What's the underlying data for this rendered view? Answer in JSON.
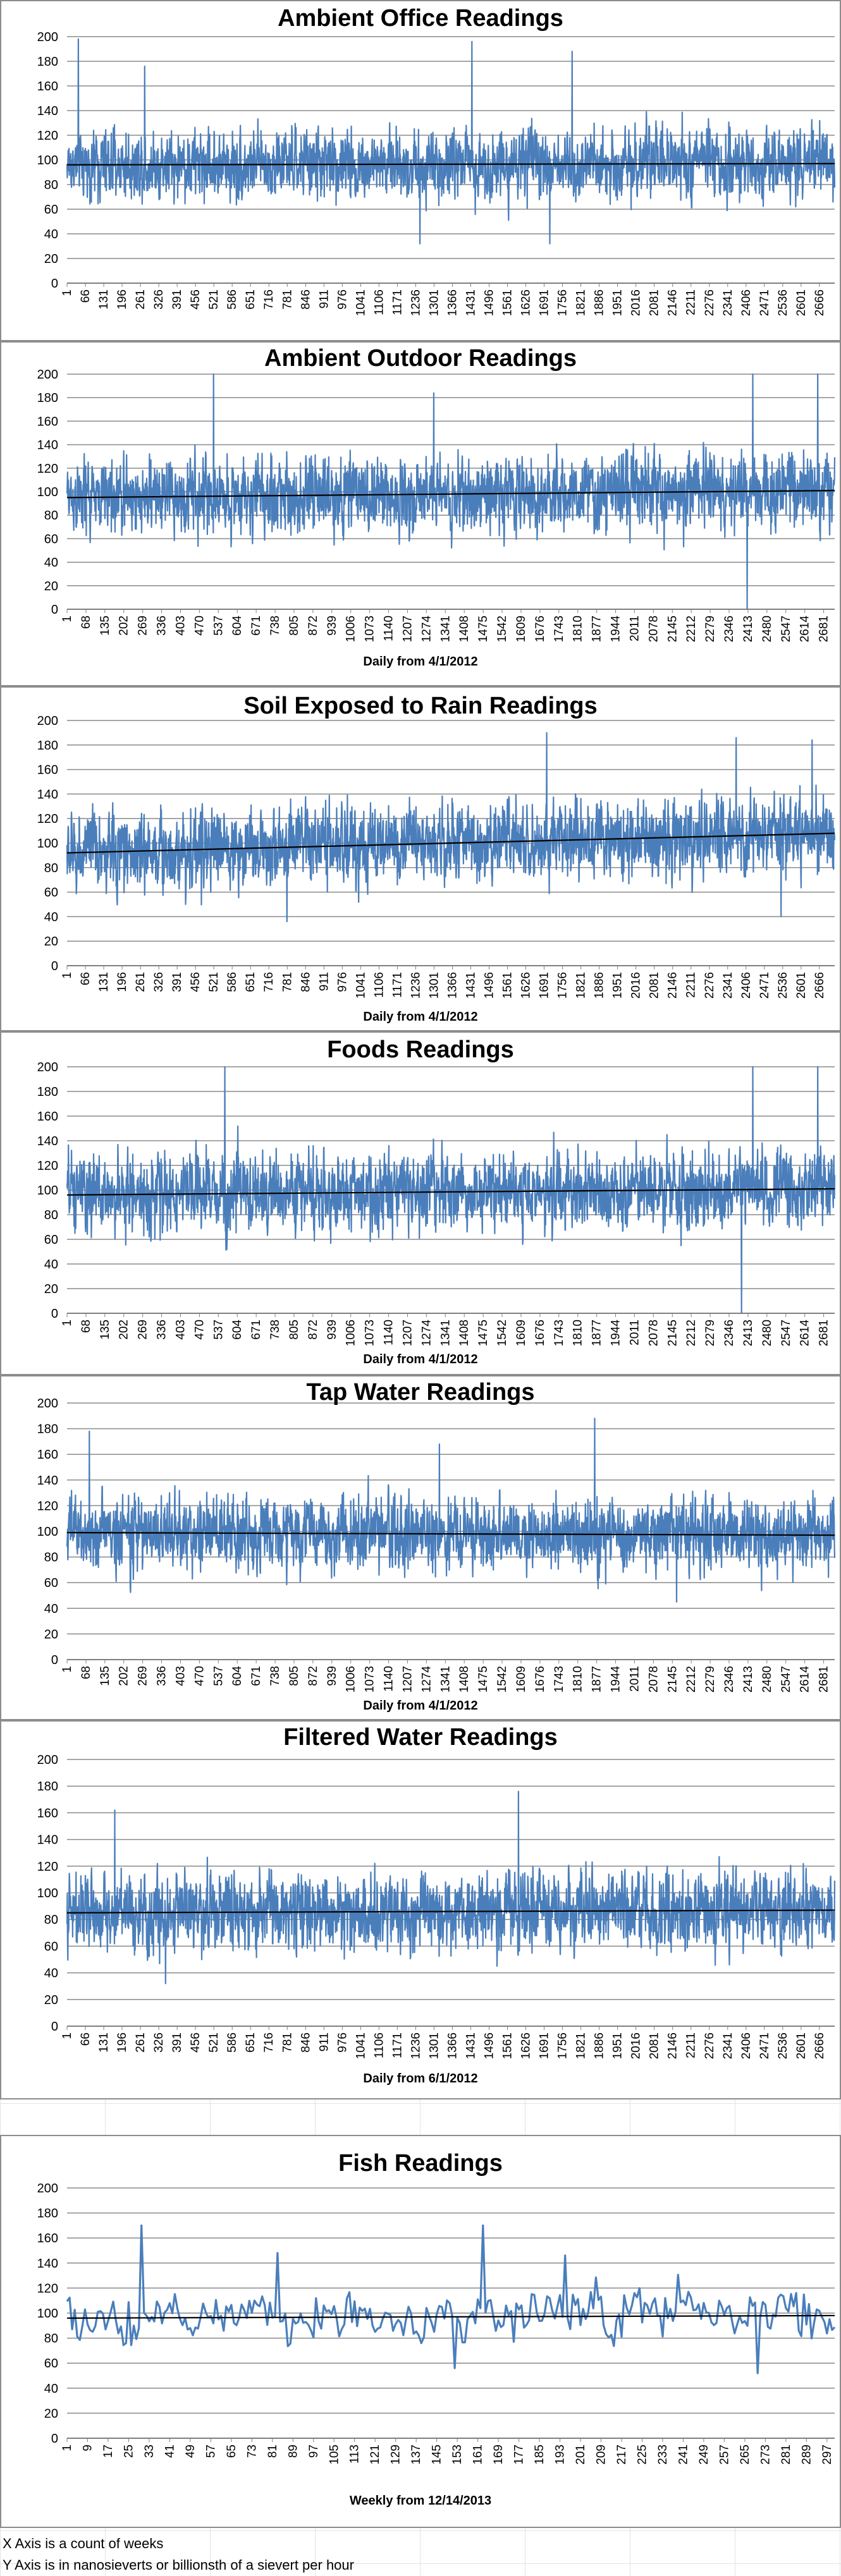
{
  "chart_data": [
    {
      "type": "line",
      "title": "Ambient Office Readings",
      "xlabel": "",
      "ylabel": "",
      "ylim": [
        0,
        200
      ],
      "yticks": [
        0,
        20,
        40,
        60,
        80,
        100,
        120,
        140,
        160,
        180,
        200
      ],
      "xticks": [
        "1",
        "66",
        "131",
        "196",
        "261",
        "326",
        "391",
        "456",
        "521",
        "586",
        "651",
        "716",
        "781",
        "846",
        "911",
        "976",
        "1041",
        "1106",
        "1171",
        "1236",
        "1301",
        "1366",
        "1431",
        "1496",
        "1561",
        "1626",
        "1691",
        "1756",
        "1821",
        "1886",
        "1951",
        "2016",
        "2081",
        "2146",
        "2211",
        "2276",
        "2341",
        "2406",
        "2471",
        "2536",
        "2601",
        "2666"
      ],
      "xrange": [
        1,
        2720
      ],
      "series": [
        {
          "values_summary": {
            "count": 2720,
            "mean": 96,
            "typical_range": [
              60,
              140
            ],
            "min": 32,
            "max": 198
          },
          "color": "#4a7ebb"
        }
      ],
      "trendline": {
        "start": 96,
        "end": 97
      },
      "peaks": [
        {
          "x": 41,
          "y": 198
        },
        {
          "x": 1435,
          "y": 196
        },
        {
          "x": 1790,
          "y": 188
        },
        {
          "x": 276,
          "y": 176
        }
      ],
      "troughs": [
        {
          "x": 1251,
          "y": 32
        },
        {
          "x": 1711,
          "y": 32
        }
      ],
      "grid": true,
      "legend": "none"
    },
    {
      "type": "line",
      "title": "Ambient Outdoor Readings",
      "xlabel": "Daily from 4/1/2012",
      "ylabel": "",
      "ylim": [
        0,
        200
      ],
      "yticks": [
        0,
        20,
        40,
        60,
        80,
        100,
        120,
        140,
        160,
        180,
        200
      ],
      "xticks": [
        "1",
        "68",
        "135",
        "202",
        "269",
        "336",
        "403",
        "470",
        "537",
        "604",
        "671",
        "738",
        "805",
        "872",
        "939",
        "1006",
        "1073",
        "1140",
        "1207",
        "1274",
        "1341",
        "1408",
        "1475",
        "1542",
        "1609",
        "1676",
        "1743",
        "1810",
        "1877",
        "1944",
        "2011",
        "2078",
        "2145",
        "2212",
        "2279",
        "2346",
        "2413",
        "2480",
        "2547",
        "2614",
        "2681"
      ],
      "xrange": [
        1,
        2720
      ],
      "series": [
        {
          "values_summary": {
            "count": 2720,
            "mean": 98,
            "typical_range": [
              55,
              145
            ],
            "min": 0,
            "max": 200
          },
          "color": "#4a7ebb"
        }
      ],
      "trendline": {
        "start": 95,
        "end": 101
      },
      "peaks": [
        {
          "x": 520,
          "y": 200
        },
        {
          "x": 2430,
          "y": 200
        },
        {
          "x": 2660,
          "y": 200
        },
        {
          "x": 1300,
          "y": 184
        }
      ],
      "troughs": [
        {
          "x": 2410,
          "y": 0
        }
      ],
      "grid": true,
      "legend": "none"
    },
    {
      "type": "line",
      "title": "Soil Exposed to Rain Readings",
      "xlabel": "Daily from 4/1/2012",
      "ylabel": "",
      "ylim": [
        0,
        200
      ],
      "yticks": [
        0,
        20,
        40,
        60,
        80,
        100,
        120,
        140,
        160,
        180,
        200
      ],
      "xticks": [
        "1",
        "66",
        "131",
        "196",
        "261",
        "326",
        "391",
        "456",
        "521",
        "586",
        "651",
        "716",
        "781",
        "846",
        "911",
        "976",
        "1041",
        "1106",
        "1171",
        "1236",
        "1301",
        "1366",
        "1431",
        "1496",
        "1561",
        "1626",
        "1691",
        "1756",
        "1821",
        "1886",
        "1951",
        "2016",
        "2081",
        "2146",
        "2211",
        "2276",
        "2341",
        "2406",
        "2471",
        "2536",
        "2601",
        "2666"
      ],
      "xrange": [
        1,
        2720
      ],
      "series": [
        {
          "values_summary": {
            "count": 2720,
            "mean": 100,
            "typical_range": [
              60,
              150
            ],
            "min": 36,
            "max": 190
          },
          "color": "#4a7ebb"
        }
      ],
      "trendline": {
        "start": 92,
        "end": 108
      },
      "peaks": [
        {
          "x": 1700,
          "y": 190
        },
        {
          "x": 2371,
          "y": 186
        },
        {
          "x": 2640,
          "y": 184
        }
      ],
      "troughs": [
        {
          "x": 780,
          "y": 36
        },
        {
          "x": 2530,
          "y": 40
        }
      ],
      "grid": true,
      "legend": "none"
    },
    {
      "type": "line",
      "title": "Foods Readings",
      "xlabel": "Daily from 4/1/2012",
      "ylabel": "",
      "ylim": [
        0,
        200
      ],
      "yticks": [
        0,
        20,
        40,
        60,
        80,
        100,
        120,
        140,
        160,
        180,
        200
      ],
      "xticks": [
        "1",
        "68",
        "135",
        "202",
        "269",
        "336",
        "403",
        "470",
        "537",
        "604",
        "671",
        "738",
        "805",
        "872",
        "939",
        "1006",
        "1073",
        "1140",
        "1207",
        "1274",
        "1341",
        "1408",
        "1475",
        "1542",
        "1609",
        "1676",
        "1743",
        "1810",
        "1877",
        "1944",
        "2011",
        "2078",
        "2145",
        "2212",
        "2279",
        "2346",
        "2413",
        "2480",
        "2547",
        "2614",
        "2681"
      ],
      "xrange": [
        1,
        2720
      ],
      "series": [
        {
          "values_summary": {
            "count": 2720,
            "mean": 98,
            "typical_range": [
              55,
              145
            ],
            "min": 0,
            "max": 200
          },
          "color": "#4a7ebb"
        }
      ],
      "trendline": {
        "start": 96,
        "end": 101
      },
      "peaks": [
        {
          "x": 560,
          "y": 200
        },
        {
          "x": 2430,
          "y": 200
        },
        {
          "x": 2660,
          "y": 200
        }
      ],
      "troughs": [
        {
          "x": 2390,
          "y": 0
        }
      ],
      "grid": true,
      "legend": "none"
    },
    {
      "type": "line",
      "title": "Tap Water Readings",
      "xlabel": "Daily from 4/1/2012",
      "ylabel": "",
      "ylim": [
        0,
        200
      ],
      "yticks": [
        0,
        20,
        40,
        60,
        80,
        100,
        120,
        140,
        160,
        180,
        200
      ],
      "xticks": [
        "1",
        "68",
        "135",
        "202",
        "269",
        "336",
        "403",
        "470",
        "537",
        "604",
        "671",
        "738",
        "805",
        "872",
        "939",
        "1006",
        "1073",
        "1140",
        "1207",
        "1274",
        "1341",
        "1408",
        "1475",
        "1542",
        "1609",
        "1676",
        "1743",
        "1810",
        "1877",
        "1944",
        "2011",
        "2078",
        "2145",
        "2212",
        "2279",
        "2346",
        "2413",
        "2480",
        "2547",
        "2614",
        "2681"
      ],
      "xrange": [
        1,
        2720
      ],
      "series": [
        {
          "values_summary": {
            "count": 2720,
            "mean": 98,
            "typical_range": [
              60,
              140
            ],
            "min": 45,
            "max": 188
          },
          "color": "#4a7ebb"
        }
      ],
      "trendline": {
        "start": 99,
        "end": 97
      },
      "peaks": [
        {
          "x": 1870,
          "y": 188
        },
        {
          "x": 1320,
          "y": 168
        },
        {
          "x": 80,
          "y": 178
        }
      ],
      "troughs": [
        {
          "x": 2160,
          "y": 45
        }
      ],
      "grid": true,
      "legend": "none"
    },
    {
      "type": "line",
      "title": "Filtered Water Readings",
      "xlabel": "Daily from 6/1/2012",
      "ylabel": "",
      "ylim": [
        0,
        200
      ],
      "yticks": [
        0,
        20,
        40,
        60,
        80,
        100,
        120,
        140,
        160,
        180,
        200
      ],
      "xticks": [
        "1",
        "66",
        "131",
        "196",
        "261",
        "326",
        "391",
        "456",
        "521",
        "586",
        "651",
        "716",
        "781",
        "846",
        "911",
        "976",
        "1041",
        "1106",
        "1171",
        "1236",
        "1301",
        "1366",
        "1431",
        "1496",
        "1561",
        "1626",
        "1691",
        "1756",
        "1821",
        "1886",
        "1951",
        "2016",
        "2081",
        "2146",
        "2211",
        "2276",
        "2341",
        "2406",
        "2471",
        "2536",
        "2601",
        "2666"
      ],
      "xrange": [
        1,
        2720
      ],
      "series": [
        {
          "values_summary": {
            "count": 2720,
            "mean": 86,
            "typical_range": [
              50,
              130
            ],
            "min": 32,
            "max": 176
          },
          "color": "#4a7ebb"
        }
      ],
      "trendline": {
        "start": 85,
        "end": 87
      },
      "peaks": [
        {
          "x": 1600,
          "y": 176
        },
        {
          "x": 170,
          "y": 162
        }
      ],
      "troughs": [
        {
          "x": 350,
          "y": 32
        }
      ],
      "grid": true,
      "legend": "none"
    },
    {
      "type": "line",
      "title": "Fish Readings",
      "xlabel": "Weekly from 12/14/2013",
      "ylabel": "",
      "ylim": [
        0,
        200
      ],
      "yticks": [
        0,
        20,
        40,
        60,
        80,
        100,
        120,
        140,
        160,
        180,
        200
      ],
      "xticks": [
        "1",
        "9",
        "17",
        "25",
        "33",
        "41",
        "49",
        "57",
        "65",
        "73",
        "81",
        "89",
        "97",
        "105",
        "113",
        "121",
        "129",
        "137",
        "145",
        "153",
        "161",
        "169",
        "177",
        "185",
        "193",
        "201",
        "209",
        "217",
        "225",
        "233",
        "241",
        "249",
        "257",
        "265",
        "273",
        "281",
        "289",
        "297"
      ],
      "xrange": [
        1,
        300
      ],
      "series": [
        {
          "values_summary": {
            "count": 300,
            "mean": 96,
            "typical_range": [
              65,
              130
            ],
            "min": 52,
            "max": 170
          },
          "color": "#4a7ebb"
        }
      ],
      "trendline": {
        "start": 96,
        "end": 98
      },
      "peaks": [
        {
          "x": 30,
          "y": 170
        },
        {
          "x": 163,
          "y": 170
        },
        {
          "x": 195,
          "y": 146
        },
        {
          "x": 83,
          "y": 148
        }
      ],
      "troughs": [
        {
          "x": 270,
          "y": 52
        },
        {
          "x": 152,
          "y": 56
        }
      ],
      "grid": true,
      "legend": "none"
    }
  ],
  "footnotes": {
    "line1": "X Axis is a count of weeks",
    "line2": "Y Axis is in nanosieverts or billionsth of a sievert per hour"
  }
}
